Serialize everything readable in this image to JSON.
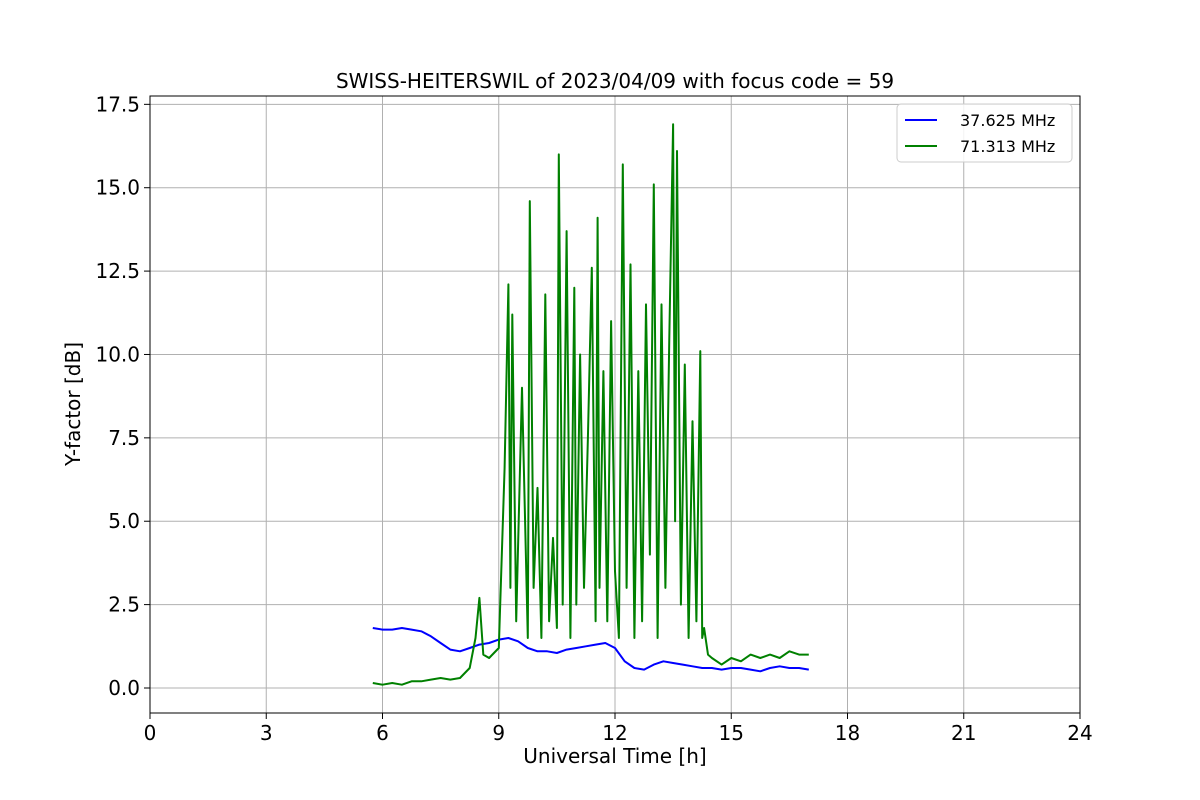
{
  "chart_data": {
    "type": "line",
    "title": "SWISS-HEITERSWIL of 2023/04/09 with focus code = 59",
    "xlabel": "Universal Time [h]",
    "ylabel": "Y-factor [dB]",
    "xlim": [
      0,
      24
    ],
    "ylim": [
      -0.75,
      17.75
    ],
    "x_ticks": [
      0,
      3,
      6,
      9,
      12,
      15,
      18,
      21,
      24
    ],
    "y_ticks": [
      0.0,
      2.5,
      5.0,
      7.5,
      10.0,
      12.5,
      15.0,
      17.5
    ],
    "x_tick_labels": [
      "0",
      "3",
      "6",
      "9",
      "12",
      "15",
      "18",
      "21",
      "24"
    ],
    "y_tick_labels": [
      "0.0",
      "2.5",
      "5.0",
      "7.5",
      "10.0",
      "12.5",
      "15.0",
      "17.5"
    ],
    "grid": true,
    "legend_position": "top-right",
    "series": [
      {
        "name": "37.625 MHz",
        "color": "#0000ff",
        "x": [
          5.75,
          6.0,
          6.25,
          6.5,
          6.75,
          7.0,
          7.25,
          7.5,
          7.75,
          8.0,
          8.25,
          8.5,
          8.75,
          9.0,
          9.25,
          9.5,
          9.75,
          10.0,
          10.25,
          10.5,
          10.75,
          11.0,
          11.25,
          11.5,
          11.75,
          12.0,
          12.25,
          12.5,
          12.75,
          13.0,
          13.25,
          13.5,
          13.75,
          14.0,
          14.25,
          14.5,
          14.75,
          15.0,
          15.25,
          15.5,
          15.75,
          16.0,
          16.25,
          16.5,
          16.75,
          17.0
        ],
        "values": [
          1.8,
          1.75,
          1.75,
          1.8,
          1.75,
          1.7,
          1.55,
          1.35,
          1.15,
          1.1,
          1.2,
          1.3,
          1.35,
          1.45,
          1.5,
          1.4,
          1.2,
          1.1,
          1.1,
          1.05,
          1.15,
          1.2,
          1.25,
          1.3,
          1.35,
          1.2,
          0.8,
          0.6,
          0.55,
          0.7,
          0.8,
          0.75,
          0.7,
          0.65,
          0.6,
          0.6,
          0.55,
          0.6,
          0.6,
          0.55,
          0.5,
          0.6,
          0.65,
          0.6,
          0.6,
          0.55
        ]
      },
      {
        "name": "71.313 MHz",
        "color": "#008000",
        "x": [
          5.75,
          6.0,
          6.25,
          6.5,
          6.75,
          7.0,
          7.25,
          7.5,
          7.75,
          8.0,
          8.25,
          8.4,
          8.5,
          8.6,
          8.75,
          9.0,
          9.15,
          9.25,
          9.3,
          9.35,
          9.45,
          9.6,
          9.75,
          9.8,
          9.9,
          10.0,
          10.1,
          10.2,
          10.3,
          10.4,
          10.5,
          10.55,
          10.65,
          10.75,
          10.85,
          10.95,
          11.0,
          11.1,
          11.2,
          11.3,
          11.4,
          11.5,
          11.55,
          11.6,
          11.7,
          11.8,
          11.9,
          12.0,
          12.1,
          12.2,
          12.3,
          12.4,
          12.5,
          12.6,
          12.7,
          12.8,
          12.9,
          13.0,
          13.1,
          13.2,
          13.3,
          13.4,
          13.5,
          13.55,
          13.6,
          13.7,
          13.8,
          13.9,
          14.0,
          14.1,
          14.2,
          14.25,
          14.3,
          14.4,
          14.5,
          14.75,
          15.0,
          15.25,
          15.5,
          15.75,
          16.0,
          16.25,
          16.5,
          16.75,
          17.0
        ],
        "values": [
          0.15,
          0.1,
          0.15,
          0.1,
          0.2,
          0.2,
          0.25,
          0.3,
          0.25,
          0.3,
          0.6,
          1.5,
          2.7,
          1.0,
          0.9,
          1.2,
          6.6,
          12.1,
          3.0,
          11.2,
          2.0,
          9.0,
          1.5,
          14.6,
          3.0,
          6.0,
          1.5,
          11.8,
          2.0,
          4.5,
          1.8,
          16.0,
          2.5,
          13.7,
          1.5,
          12.0,
          2.5,
          10.0,
          3.0,
          7.5,
          12.6,
          2.0,
          14.1,
          3.0,
          9.5,
          2.0,
          11.0,
          3.5,
          1.5,
          15.7,
          3.0,
          12.7,
          1.5,
          9.5,
          2.0,
          11.5,
          4.0,
          15.1,
          1.5,
          11.5,
          3.0,
          10.5,
          16.9,
          5.0,
          16.1,
          2.5,
          9.7,
          1.5,
          8.0,
          2.0,
          10.1,
          1.5,
          1.8,
          1.0,
          0.9,
          0.7,
          0.9,
          0.8,
          1.0,
          0.9,
          1.0,
          0.9,
          1.1,
          1.0,
          1.0
        ]
      }
    ]
  }
}
